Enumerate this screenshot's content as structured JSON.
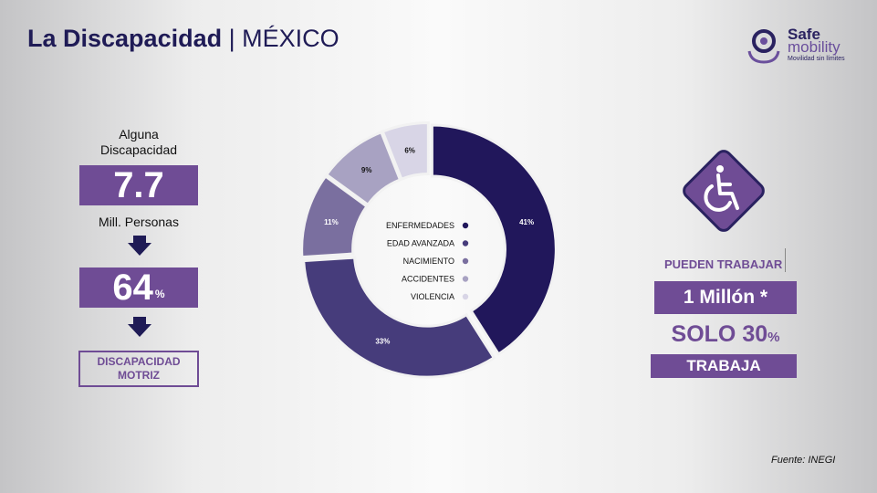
{
  "header": {
    "title_bold": "La Discapacidad",
    "title_separator": "|",
    "title_rest": "MÉXICO"
  },
  "logo": {
    "name_top": "Safe",
    "name_bottom": "mobility",
    "tagline": "Movilidad sin límites"
  },
  "left_panel": {
    "label_top_line1": "Alguna",
    "label_top_line2": "Discapacidad",
    "value_main": "7.7",
    "unit_label": "Mill. Personas",
    "value_percent": "64",
    "percent_sign": "%",
    "box_line1": "DISCAPACIDAD",
    "box_line2": "MOTRIZ"
  },
  "right_panel": {
    "icon": "wheelchair-icon",
    "pueden": "PUEDEN TRABAJAR",
    "millon": "1 Millón *",
    "solo": "SOLO 30",
    "solo_pct": "%",
    "trabaja": "TRABAJA"
  },
  "footer": {
    "source": "Fuente: INEGI"
  },
  "colors": {
    "accent": "#6f4c95",
    "dark": "#1f1b56"
  },
  "chart_data": {
    "type": "pie",
    "categories": [
      "ENFERMEDADES",
      "EDAD AVANZADA",
      "NACIMIENTO",
      "ACCIDENTES",
      "VIOLENCIA"
    ],
    "values": [
      41,
      33,
      11,
      9,
      6
    ],
    "value_labels": [
      "41%",
      "33%",
      "11%",
      "9%",
      "6%"
    ],
    "colors": [
      "#21175b",
      "#463c7b",
      "#7a6f9f",
      "#a8a2c2",
      "#d8d5e6"
    ],
    "label_colors": [
      "#ffffff",
      "#ffffff",
      "#ffffff",
      "#111111",
      "#111111"
    ],
    "legend_placement": "center"
  }
}
